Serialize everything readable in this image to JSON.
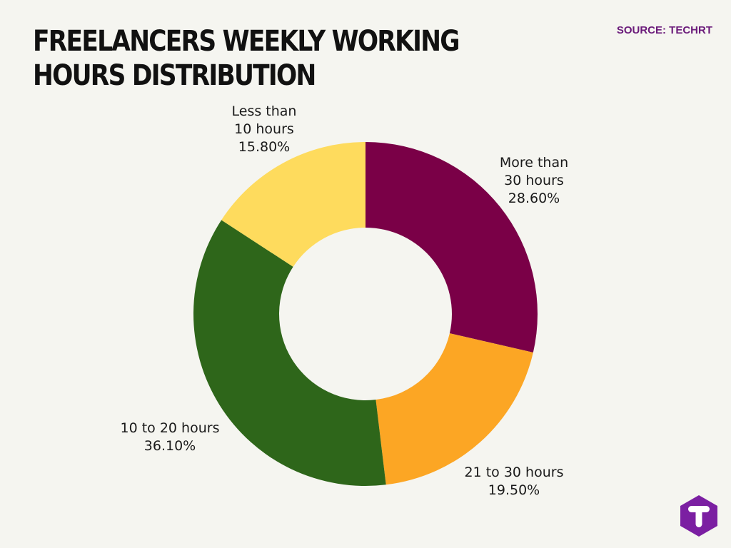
{
  "header": {
    "title": "FREELANCERS WEEKLY WORKING HOURS DISTRIBUTION",
    "source": "SOURCE: TECHRT"
  },
  "brand": {
    "logo_icon": "techrt-t-hexagon-icon",
    "logo_color": "#7b1fa2"
  },
  "chart_data": {
    "type": "pie",
    "style": "donut",
    "slices": [
      {
        "label_lines": [
          "More than",
          "30 hours"
        ],
        "value_text": "28.60%",
        "value": 28.6,
        "color": "#7a0047"
      },
      {
        "label_lines": [
          "21 to 30 hours"
        ],
        "value_text": "19.50%",
        "value": 19.5,
        "color": "#fca624"
      },
      {
        "label_lines": [
          "10 to 20 hours"
        ],
        "value_text": "36.10%",
        "value": 36.1,
        "color": "#2e661a"
      },
      {
        "label_lines": [
          "Less than",
          "10 hours"
        ],
        "value_text": "15.80%",
        "value": 15.8,
        "color": "#fedb5d"
      }
    ],
    "legend": "none"
  }
}
